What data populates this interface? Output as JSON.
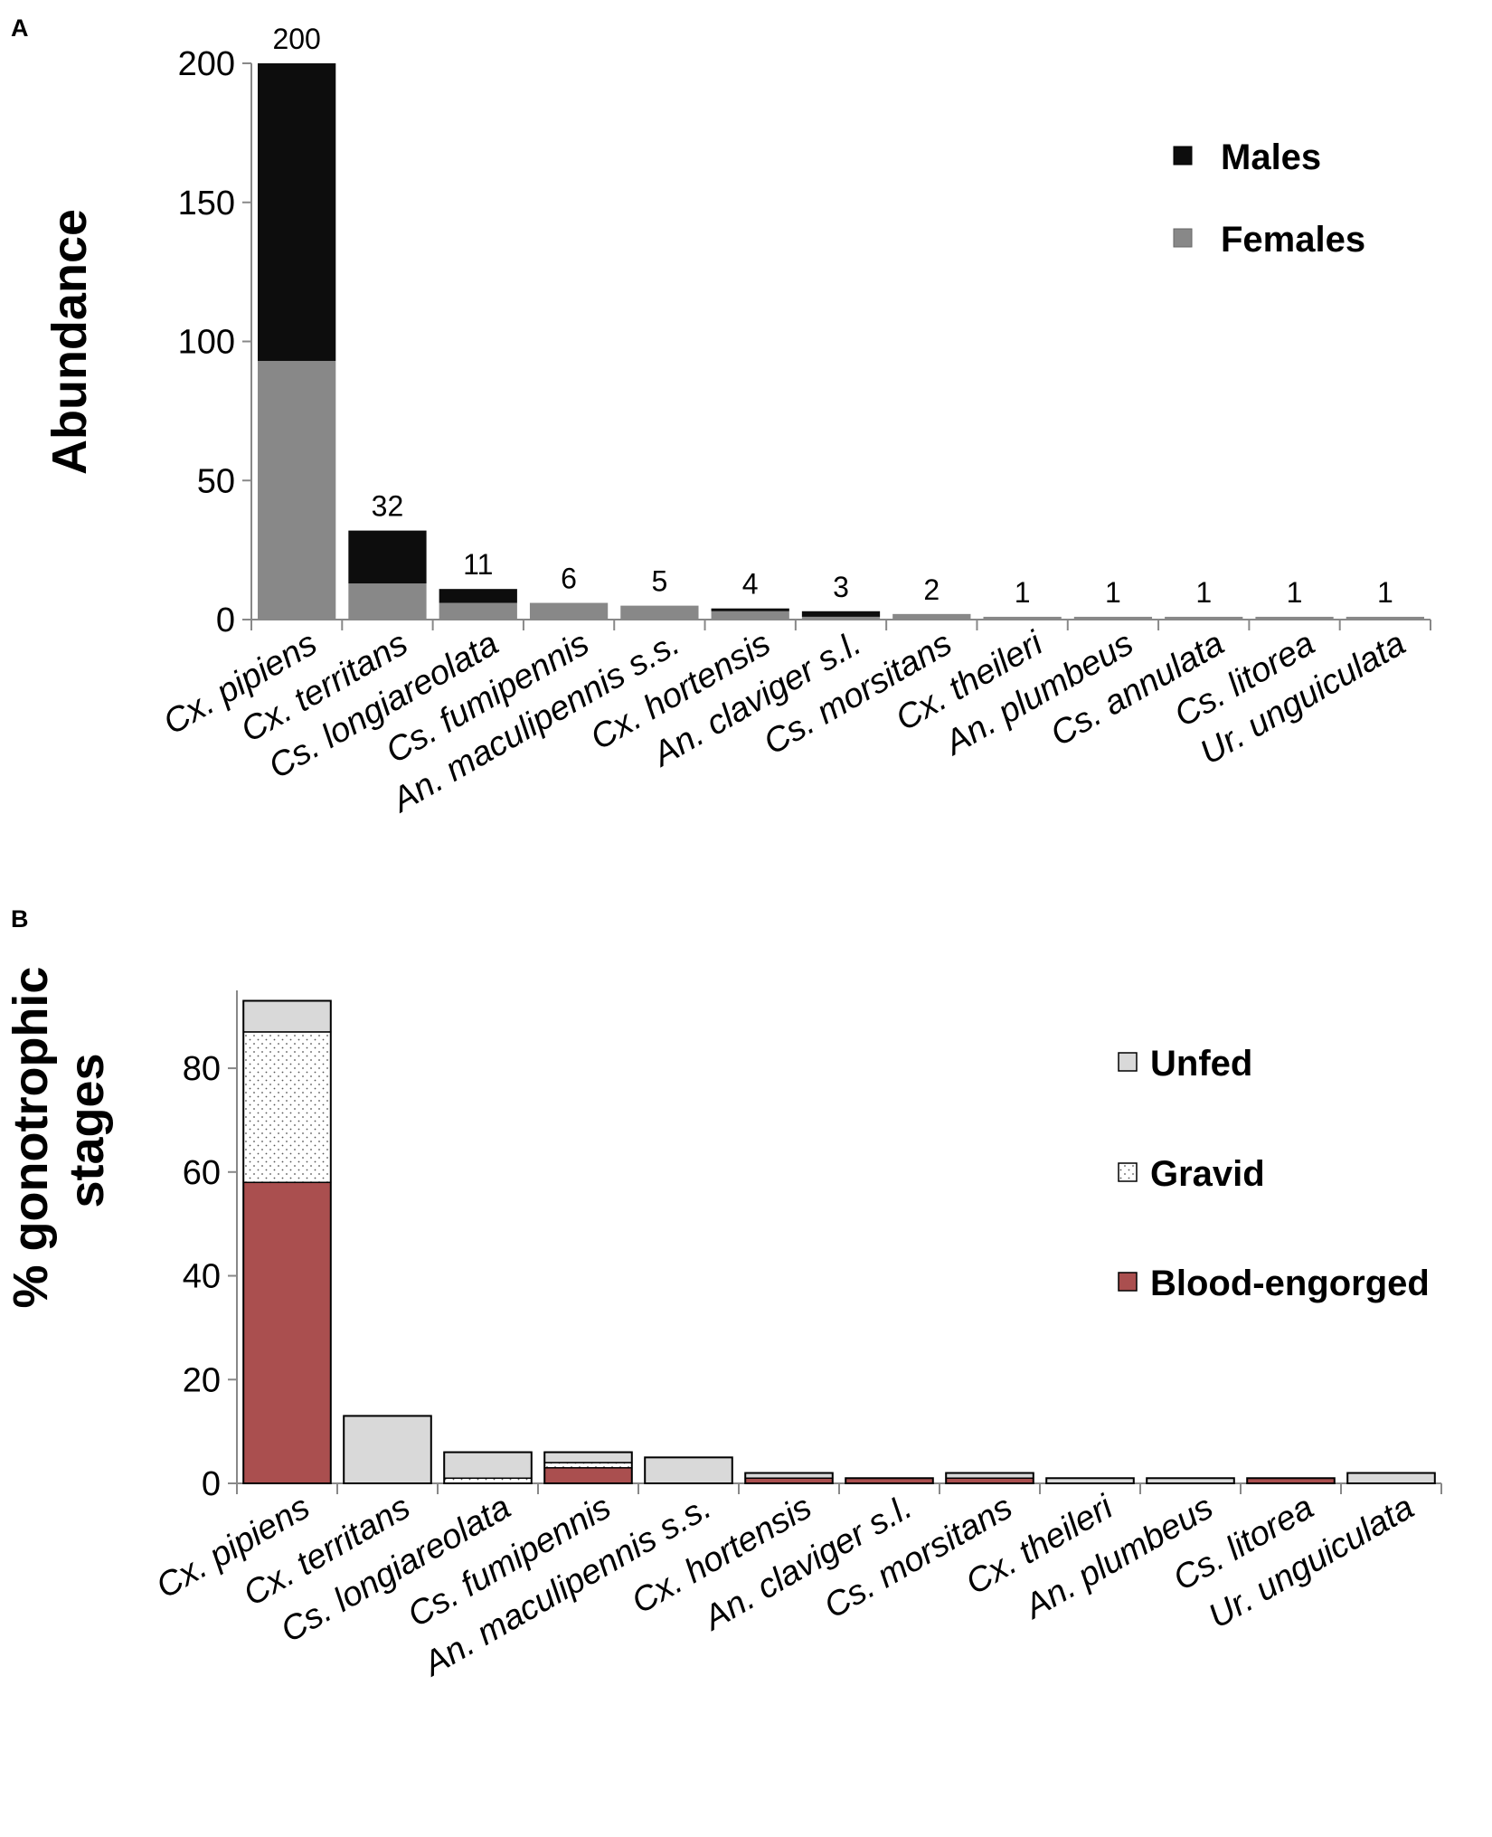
{
  "chart_data": [
    {
      "panel": "A",
      "type": "bar",
      "stacked": true,
      "ylabel": "Abundance",
      "xlabel": "",
      "ylim": [
        0,
        200
      ],
      "yticks": [
        0,
        50,
        100,
        150,
        200
      ],
      "legend_position": "top-right",
      "categories": [
        "Cx. pipiens",
        "Cx. territans",
        "Cs. longiareolata",
        "Cs. fumipennis",
        "An. maculipennis s.s.",
        "Cx. hortensis",
        "An. claviger s.l.",
        "Cs. morsitans",
        "Cx. theileri",
        "An. plumbeus",
        "Cs. annulata",
        "Cs. litorea",
        "Ur. unguiculata"
      ],
      "series": [
        {
          "name": "Females",
          "color": "#888888",
          "values": [
            93,
            13,
            6,
            6,
            5,
            3,
            1,
            2,
            1,
            1,
            1,
            1,
            1
          ]
        },
        {
          "name": "Males",
          "color": "#0d0d0d",
          "values": [
            107,
            19,
            5,
            0,
            0,
            1,
            2,
            0,
            0,
            0,
            0,
            0,
            0
          ]
        }
      ],
      "totals": [
        "200",
        "32",
        "11",
        "6",
        "5",
        "4",
        "3",
        "2",
        "1",
        "1",
        "1",
        "1",
        "1"
      ],
      "legend": [
        "Males",
        "Females"
      ]
    },
    {
      "panel": "B",
      "type": "bar",
      "stacked": true,
      "ylabel": "% gonotrophic stages",
      "xlabel": "",
      "ylim": [
        0,
        95
      ],
      "yticks": [
        0,
        20,
        40,
        60,
        80
      ],
      "legend_position": "right",
      "categories": [
        "Cx. pipiens",
        "Cx. territans",
        "Cs. longiareolata",
        "Cs. fumipennis",
        "An. maculipennis s.s.",
        "Cx. hortensis",
        "An. claviger s.l.",
        "Cs. morsitans",
        "Cx. theileri",
        "An. plumbeus",
        "Cs. litorea",
        "Ur. unguiculata"
      ],
      "series": [
        {
          "name": "Blood-engorged",
          "color": "#aa4f4f",
          "values": [
            58,
            0,
            0,
            3,
            0,
            1,
            1,
            1,
            0,
            0,
            1,
            0
          ]
        },
        {
          "name": "Gravid",
          "color": "#ffffff",
          "values": [
            29,
            0,
            1,
            1,
            0,
            0,
            0,
            0,
            0,
            0,
            0,
            0
          ]
        },
        {
          "name": "Unfed",
          "color": "#d9d9d9",
          "values": [
            6,
            13,
            5,
            2,
            5,
            1,
            0,
            1,
            1,
            1,
            0,
            2
          ]
        }
      ],
      "legend": [
        "Unfed",
        "Gravid",
        "Blood-engorged"
      ]
    }
  ]
}
